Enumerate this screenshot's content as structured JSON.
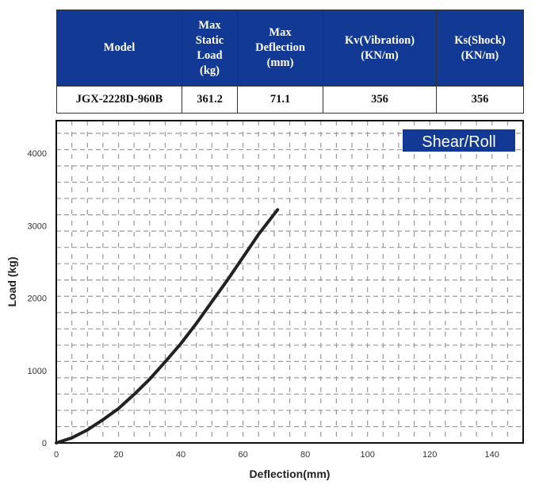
{
  "table": {
    "headers": [
      "Model",
      "Max Static Load (kg)",
      "Max Deflection (mm)",
      "Kv(Vibration) (KN/m)",
      "Ks(Shock) (KN/m)"
    ],
    "header_lines": [
      [
        "Model"
      ],
      [
        "Max",
        "Static",
        "Load",
        "(kg)"
      ],
      [
        "Max",
        "Deflection",
        "(mm)"
      ],
      [
        "Kv(Vibration)",
        "(KN/m)"
      ],
      [
        "Ks(Shock)",
        "(KN/m)"
      ]
    ],
    "rows": [
      [
        "JGX-2228D-960B",
        "361.2",
        "71.1",
        "356",
        "356"
      ]
    ],
    "header_bg": "#123a94"
  },
  "chart_data": {
    "type": "line",
    "title": "",
    "legend": {
      "label": "Shear/Roll",
      "placement": "top-right",
      "bg": "#123a94"
    },
    "xlabel": "Deflection(mm)",
    "ylabel": "Load (kg)",
    "xlim": [
      0,
      150
    ],
    "ylim": [
      0,
      4450
    ],
    "xticks": [
      0,
      20,
      40,
      60,
      80,
      100,
      120,
      140
    ],
    "yticks": [
      0,
      1000,
      2000,
      3000,
      4000
    ],
    "grid": true,
    "grid_style": "dashed",
    "series": [
      {
        "color": "#222222",
        "x": [
          0,
          5,
          10,
          15,
          20,
          25,
          30,
          35,
          40,
          45,
          50,
          55,
          60,
          65,
          71.1
        ],
        "y": [
          0,
          70,
          180,
          320,
          475,
          670,
          880,
          1120,
          1370,
          1650,
          1950,
          2250,
          2565,
          2880,
          3220
        ]
      }
    ]
  }
}
